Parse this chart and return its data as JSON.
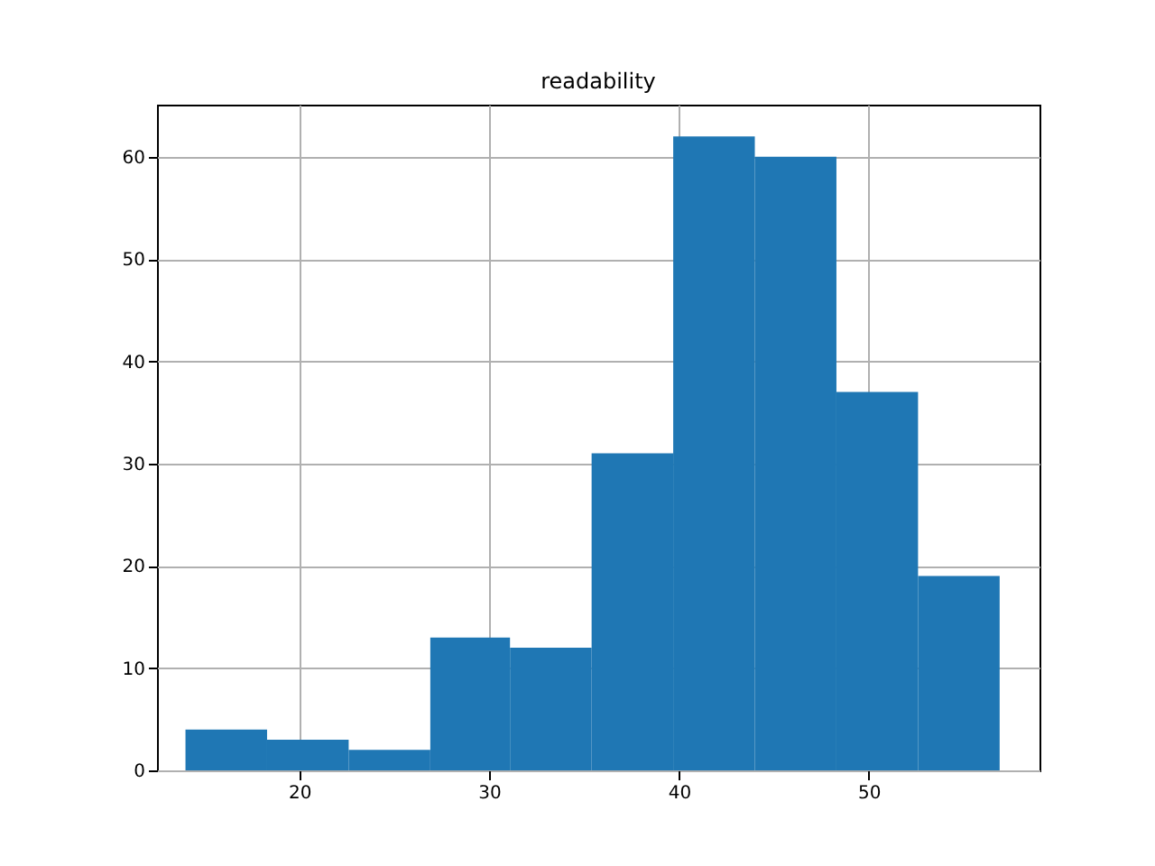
{
  "chart_data": {
    "type": "histogram",
    "title": "readability",
    "bins": [
      14,
      18.3,
      22.6,
      26.9,
      31.1,
      35.4,
      39.7,
      44,
      48.3,
      52.6,
      56.9
    ],
    "values": [
      4,
      3,
      2,
      13,
      12,
      31,
      62,
      60,
      37,
      19
    ],
    "color": "#1f77b4",
    "xlim": [
      12.5,
      59
    ],
    "xticks": [
      20,
      30,
      40,
      50
    ],
    "ylim": [
      0,
      65.1
    ],
    "yticks": [
      0,
      10,
      20,
      30,
      40,
      50,
      60
    ],
    "grid": true
  }
}
